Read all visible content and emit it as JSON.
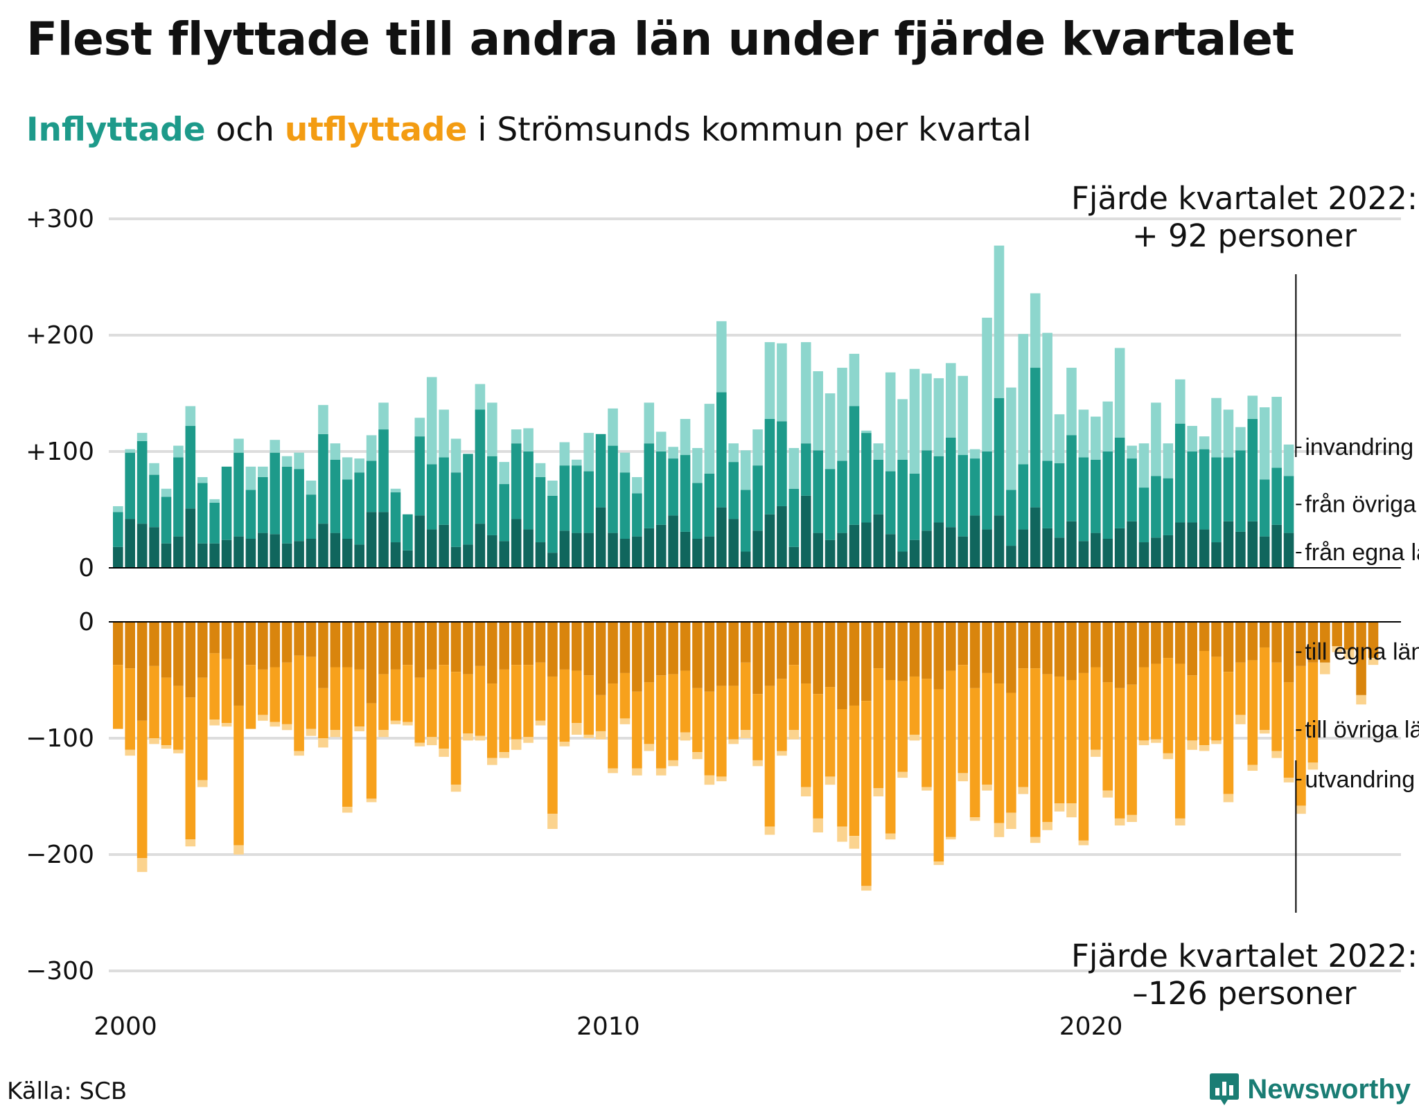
{
  "title": "Flest flyttade till andra län under fjärde kvartalet",
  "subtitle": {
    "inflow_word": "Inflyttade",
    "joiner": " och ",
    "outflow_word": "utflyttade",
    "rest": " i Strömsunds kommun per kvartal"
  },
  "source": "Källa: SCB",
  "brand": "Newsworthy",
  "colors": {
    "in_egna": "#10665d",
    "in_ovriga": "#1d9a8a",
    "in_invandring": "#8dd6cd",
    "ut_egna": "#d9850d",
    "ut_ovriga": "#f7a11c",
    "ut_utvandring": "#fbd38e",
    "grid": "#dddddd",
    "text": "#111111",
    "brand": "#1a7d74"
  },
  "annotations": {
    "top": {
      "line1": "Fjärde kvartalet 2022:",
      "line2": "+ 92 personer"
    },
    "bottom": {
      "line1": "Fjärde kvartalet 2022:",
      "line2": "–126 personer"
    }
  },
  "chart_data": [
    {
      "type": "bar",
      "stacked": true,
      "title": "Inflyttade",
      "yticks": [
        "+300",
        "+200",
        "+100",
        "0"
      ],
      "ylim": [
        0,
        300
      ],
      "x_ticks": [
        "2000",
        "2010",
        "2020"
      ],
      "series_labels": [
        "från egna länet",
        "från övriga län",
        "invandring"
      ],
      "first_quarter": "2000 Q1",
      "series": [
        {
          "name": "från egna länet",
          "values": [
            18,
            42,
            38,
            35,
            21,
            27,
            51,
            21,
            21,
            24,
            27,
            25,
            30,
            29,
            21,
            23,
            25,
            38,
            30,
            25,
            20,
            48,
            48,
            22,
            15,
            45,
            33,
            37,
            18,
            20,
            38,
            28,
            23,
            42,
            33,
            22,
            13,
            32,
            30,
            30,
            52,
            30,
            25,
            27,
            34,
            37,
            45,
            31,
            25,
            27,
            52,
            42,
            14,
            32,
            46,
            53,
            18,
            62,
            30,
            24,
            30,
            37,
            39,
            46,
            29,
            14,
            24,
            32,
            39,
            35,
            27,
            45,
            33,
            45,
            19,
            33,
            52,
            34,
            26,
            40,
            23,
            30,
            25,
            34,
            40,
            22,
            26,
            28,
            39,
            39,
            33,
            22,
            40,
            31,
            40,
            27,
            37,
            30
          ]
        },
        {
          "name": "från övriga län",
          "values": [
            30,
            57,
            71,
            45,
            40,
            68,
            71,
            52,
            35,
            63,
            72,
            42,
            48,
            70,
            66,
            62,
            38,
            77,
            63,
            51,
            62,
            44,
            71,
            43,
            31,
            68,
            56,
            58,
            64,
            78,
            98,
            68,
            49,
            65,
            67,
            56,
            49,
            56,
            58,
            53,
            63,
            75,
            57,
            37,
            73,
            63,
            49,
            66,
            48,
            54,
            99,
            49,
            53,
            56,
            82,
            73,
            50,
            45,
            71,
            61,
            62,
            102,
            77,
            47,
            54,
            79,
            57,
            69,
            57,
            77,
            70,
            49,
            67,
            101,
            48,
            56,
            120,
            58,
            64,
            74,
            72,
            63,
            75,
            78,
            54,
            47,
            53,
            49,
            85,
            61,
            69,
            73,
            55,
            70,
            88,
            49,
            49,
            49,
            96,
            55
          ]
        },
        {
          "name": "invandring",
          "values": [
            5,
            3,
            7,
            10,
            7,
            10,
            17,
            5,
            3,
            0,
            12,
            20,
            9,
            11,
            9,
            14,
            12,
            25,
            14,
            19,
            12,
            22,
            23,
            3,
            0,
            16,
            75,
            41,
            29,
            0,
            22,
            46,
            19,
            12,
            20,
            12,
            13,
            20,
            5,
            33,
            0,
            32,
            17,
            14,
            35,
            17,
            10,
            31,
            30,
            60,
            61,
            16,
            34,
            31,
            66,
            67,
            35,
            87,
            68,
            65,
            80,
            45,
            2,
            14,
            85,
            52,
            90,
            66,
            67,
            64,
            68,
            8,
            115,
            131,
            88,
            112,
            64,
            110,
            42,
            58,
            41,
            37,
            43,
            77,
            11,
            38,
            63,
            30,
            38,
            22,
            11,
            51,
            41,
            20,
            20,
            62,
            61,
            27,
            29,
            5
          ]
        }
      ]
    },
    {
      "type": "bar",
      "stacked": true,
      "title": "Utflyttade",
      "yticks": [
        "0",
        "−100",
        "−200",
        "−300"
      ],
      "ylim": [
        -300,
        0
      ],
      "x_ticks": [
        "2000",
        "2010",
        "2020"
      ],
      "series_labels": [
        "till egna länet",
        "till övriga län",
        "utvandring"
      ],
      "first_quarter": "2000 Q1",
      "series": [
        {
          "name": "till egna länet",
          "values": [
            -37,
            -40,
            -85,
            -38,
            -48,
            -55,
            -65,
            -48,
            -27,
            -32,
            -72,
            -37,
            -41,
            -39,
            -35,
            -29,
            -30,
            -57,
            -39,
            -39,
            -41,
            -70,
            -45,
            -41,
            -37,
            -48,
            -41,
            -37,
            -43,
            -45,
            -38,
            -53,
            -41,
            -37,
            -37,
            -35,
            -47,
            -41,
            -42,
            -46,
            -63,
            -53,
            -44,
            -60,
            -52,
            -46,
            -45,
            -42,
            -57,
            -60,
            -55,
            -55,
            -35,
            -62,
            -55,
            -49,
            -37,
            -53,
            -62,
            -56,
            -75,
            -72,
            -68,
            -40,
            -50,
            -51,
            -47,
            -49,
            -58,
            -42,
            -37,
            -57,
            -44,
            -53,
            -61,
            -40,
            -40,
            -45,
            -47,
            -50,
            -44,
            -39,
            -52,
            -57,
            -54,
            -39,
            -36,
            -31,
            -36,
            -46,
            -25,
            -30,
            -43,
            -35,
            -33,
            -22,
            -35,
            -52,
            -38,
            -35,
            -35,
            -21,
            -24,
            -63,
            -31
          ]
        },
        {
          "name": "till övriga län",
          "values": [
            -55,
            -70,
            -118,
            -62,
            -58,
            -55,
            -122,
            -88,
            -57,
            -55,
            -120,
            -55,
            -39,
            -47,
            -53,
            -82,
            -62,
            -43,
            -54,
            -120,
            -49,
            -82,
            -48,
            -44,
            -49,
            -56,
            -58,
            -72,
            -97,
            -51,
            -60,
            -64,
            -71,
            -64,
            -62,
            -50,
            -118,
            -62,
            -45,
            -51,
            -31,
            -73,
            -39,
            -66,
            -53,
            -80,
            -74,
            -53,
            -55,
            -72,
            -78,
            -46,
            -58,
            -57,
            -121,
            -62,
            -56,
            -89,
            -107,
            -77,
            -101,
            -112,
            -159,
            -103,
            -132,
            -78,
            -50,
            -93,
            -148,
            -143,
            -93,
            -111,
            -96,
            -120,
            -103,
            -102,
            -145,
            -127,
            -109,
            -106,
            -144,
            -71,
            -93,
            -112,
            -112,
            -63,
            -65,
            -82,
            -133,
            -56,
            -81,
            -72,
            -105,
            -45,
            -90,
            -71,
            -76,
            -82,
            -120,
            -86
          ]
        },
        {
          "name": "utvandring",
          "values": [
            0,
            -5,
            -12,
            -5,
            -3,
            -3,
            -6,
            -6,
            -5,
            -3,
            -8,
            0,
            -5,
            -4,
            -5,
            -4,
            -6,
            -8,
            -6,
            -5,
            -4,
            -3,
            -6,
            -3,
            -3,
            -3,
            -7,
            -7,
            -6,
            -6,
            -4,
            -6,
            -5,
            -9,
            -5,
            -4,
            -13,
            -4,
            -10,
            -3,
            -7,
            -4,
            -5,
            -6,
            -6,
            -6,
            -5,
            -7,
            -6,
            -8,
            -4,
            -4,
            -7,
            -5,
            -7,
            -4,
            -8,
            -8,
            -12,
            -7,
            -13,
            -11,
            -4,
            -7,
            -5,
            -5,
            -5,
            -3,
            -3,
            -2,
            -7,
            -3,
            -5,
            -12,
            -14,
            -6,
            -5,
            -7,
            -7,
            -12,
            -4,
            -6,
            -6,
            -6,
            -6,
            -4,
            -3,
            -5,
            -6,
            -8,
            -5,
            -3,
            -7,
            -8,
            -5,
            -3,
            -6,
            -4,
            -7,
            -6,
            -10,
            -5,
            -8,
            -8,
            -6
          ]
        }
      ]
    }
  ]
}
